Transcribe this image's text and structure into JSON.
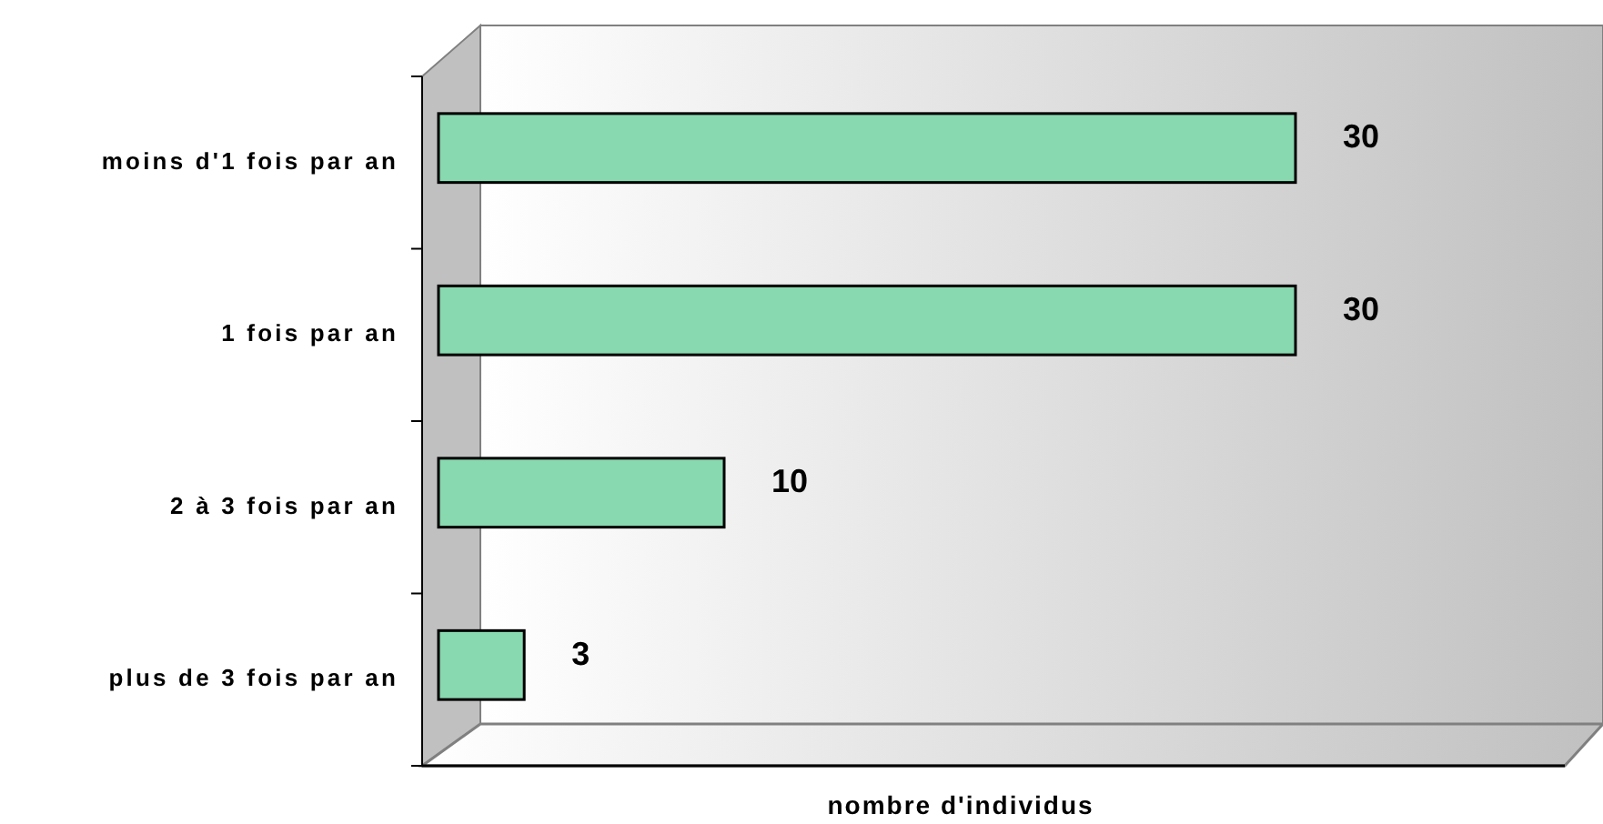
{
  "chart_data": {
    "type": "bar",
    "orientation": "horizontal",
    "categories": [
      "moins d'1 fois par an",
      "1 fois par an",
      "2 à 3 fois par an",
      "plus de 3 fois par an"
    ],
    "values": [
      30,
      30,
      10,
      3
    ],
    "color": "#88d8b0",
    "xlabel": "nombre d'individus",
    "data_labels": true,
    "tick_labels": "y"
  }
}
